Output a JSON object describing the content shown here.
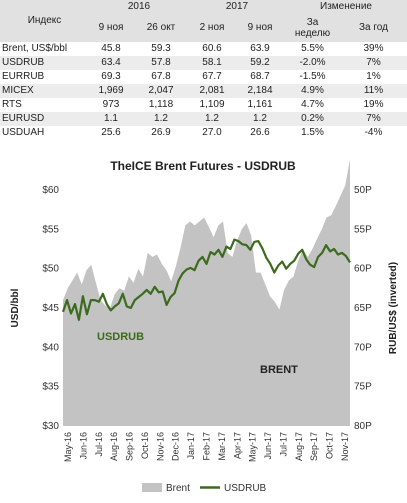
{
  "table": {
    "header_index": "Индекс",
    "years": [
      "2016",
      "2017"
    ],
    "change_label": "Изменение",
    "dates": [
      "9 ноя",
      "26 окт",
      "2 ноя",
      "9 ноя"
    ],
    "change_cols": [
      "За неделю",
      "За год"
    ],
    "rows": [
      {
        "name": "Brent, US$/bbl",
        "v": [
          "45.8",
          "59.3",
          "60.6",
          "63.9"
        ],
        "w": "5.5%",
        "y": "39%"
      },
      {
        "name": "USDRUB",
        "v": [
          "63.4",
          "57.8",
          "58.1",
          "59.2"
        ],
        "w": "-2.0%",
        "y": "7%"
      },
      {
        "name": "EURRUB",
        "v": [
          "69.3",
          "67.8",
          "67.7",
          "68.7"
        ],
        "w": "-1.5%",
        "y": "1%"
      },
      {
        "name": "MICEX",
        "v": [
          "1,969",
          "2,047",
          "2,081",
          "2,184"
        ],
        "w": "4.9%",
        "y": "11%"
      },
      {
        "name": "RTS",
        "v": [
          "973",
          "1,118",
          "1,109",
          "1,161"
        ],
        "w": "4.7%",
        "y": "19%"
      },
      {
        "name": "EURUSD",
        "v": [
          "1.1",
          "1.2",
          "1.2",
          "1.2"
        ],
        "w": "0.2%",
        "y": "7%"
      },
      {
        "name": "USDUAH",
        "v": [
          "25.6",
          "26.9",
          "27.0",
          "26.6"
        ],
        "w": "1.5%",
        "y": "-4%"
      }
    ]
  },
  "chart_data": {
    "type": "area",
    "title": "TheICE Brent Futures - USDRUB",
    "ylabel": "USD/bbl",
    "ylabel_right": "RUB/US$ (inverted)",
    "ylim": [
      30,
      60
    ],
    "yticks": [
      "$30",
      "$35",
      "$40",
      "$45",
      "$50",
      "$55",
      "$60"
    ],
    "ylim_right": [
      50,
      80
    ],
    "yticks_right": [
      "50Р",
      "55Р",
      "60Р",
      "65Р",
      "70Р",
      "75Р",
      "80Р"
    ],
    "x_labels": [
      "May-16",
      "Jun-16",
      "Jul-16",
      "Aug-16",
      "Sep-16",
      "Oct-16",
      "Nov-16",
      "Dec-16",
      "Jan-17",
      "Feb-17",
      "Mar-17",
      "Apr-17",
      "May-17",
      "Jun-17",
      "Jul-17",
      "Aug-17",
      "Sep-17",
      "Oct-17",
      "Nov-17"
    ],
    "annotations": [
      "USDRUB",
      "BRENT"
    ],
    "legend": [
      "Brent",
      "USDRUB"
    ],
    "legend_position": "bottom",
    "colors": {
      "brent": "#c3c3c3",
      "usdrub": "#3c6b1e"
    },
    "series": [
      {
        "name": "Brent",
        "axis": "left",
        "values": [
          46.0,
          47.5,
          48.5,
          49.5,
          48.0,
          49.8,
          50.5,
          48.2,
          46.0,
          45.3,
          45.0,
          46.8,
          47.5,
          47.2,
          49.0,
          48.2,
          50.0,
          49.0,
          52.0,
          51.5,
          51.8,
          50.6,
          49.8,
          48.4,
          50.3,
          52.7,
          55.5,
          56.0,
          55.5,
          56.0,
          56.5,
          55.3,
          54.0,
          55.5,
          56.0,
          52.0,
          51.5,
          53.6,
          55.0,
          55.8,
          54.2,
          49.5,
          49.5,
          48.0,
          46.5,
          45.8,
          44.8,
          47.3,
          48.5,
          49.0,
          51.0,
          52.5,
          51.5,
          52.5,
          53.8,
          55.0,
          56.5,
          56.8,
          58.0,
          59.3,
          60.6,
          63.9
        ]
      },
      {
        "name": "USDRUB",
        "axis": "right",
        "values": [
          65.5,
          64.0,
          65.7,
          64.5,
          66.5,
          63.5,
          65.8,
          64.0,
          64.0,
          64.2,
          63.2,
          64.5,
          65.3,
          64.8,
          64.4,
          63.2,
          64.8,
          65.0,
          64.0,
          63.6,
          63.2,
          62.7,
          63.2,
          62.3,
          63.0,
          62.9,
          64.6,
          63.6,
          63.1,
          61.5,
          60.6,
          60.1,
          59.9,
          60.2,
          59.0,
          58.5,
          59.4,
          57.9,
          58.2,
          57.6,
          58.5,
          57.2,
          57.5,
          56.3,
          56.5,
          56.9,
          57.0,
          57.6,
          56.6,
          56.5,
          57.4,
          58.6,
          59.4,
          60.5,
          59.6,
          59.1,
          60.0,
          59.4,
          59.0,
          58.1,
          57.6,
          58.8,
          59.5,
          59.8,
          58.5,
          58.0,
          57.0,
          57.8,
          57.5,
          58.2,
          58.0,
          58.4,
          59.2
        ]
      }
    ]
  }
}
